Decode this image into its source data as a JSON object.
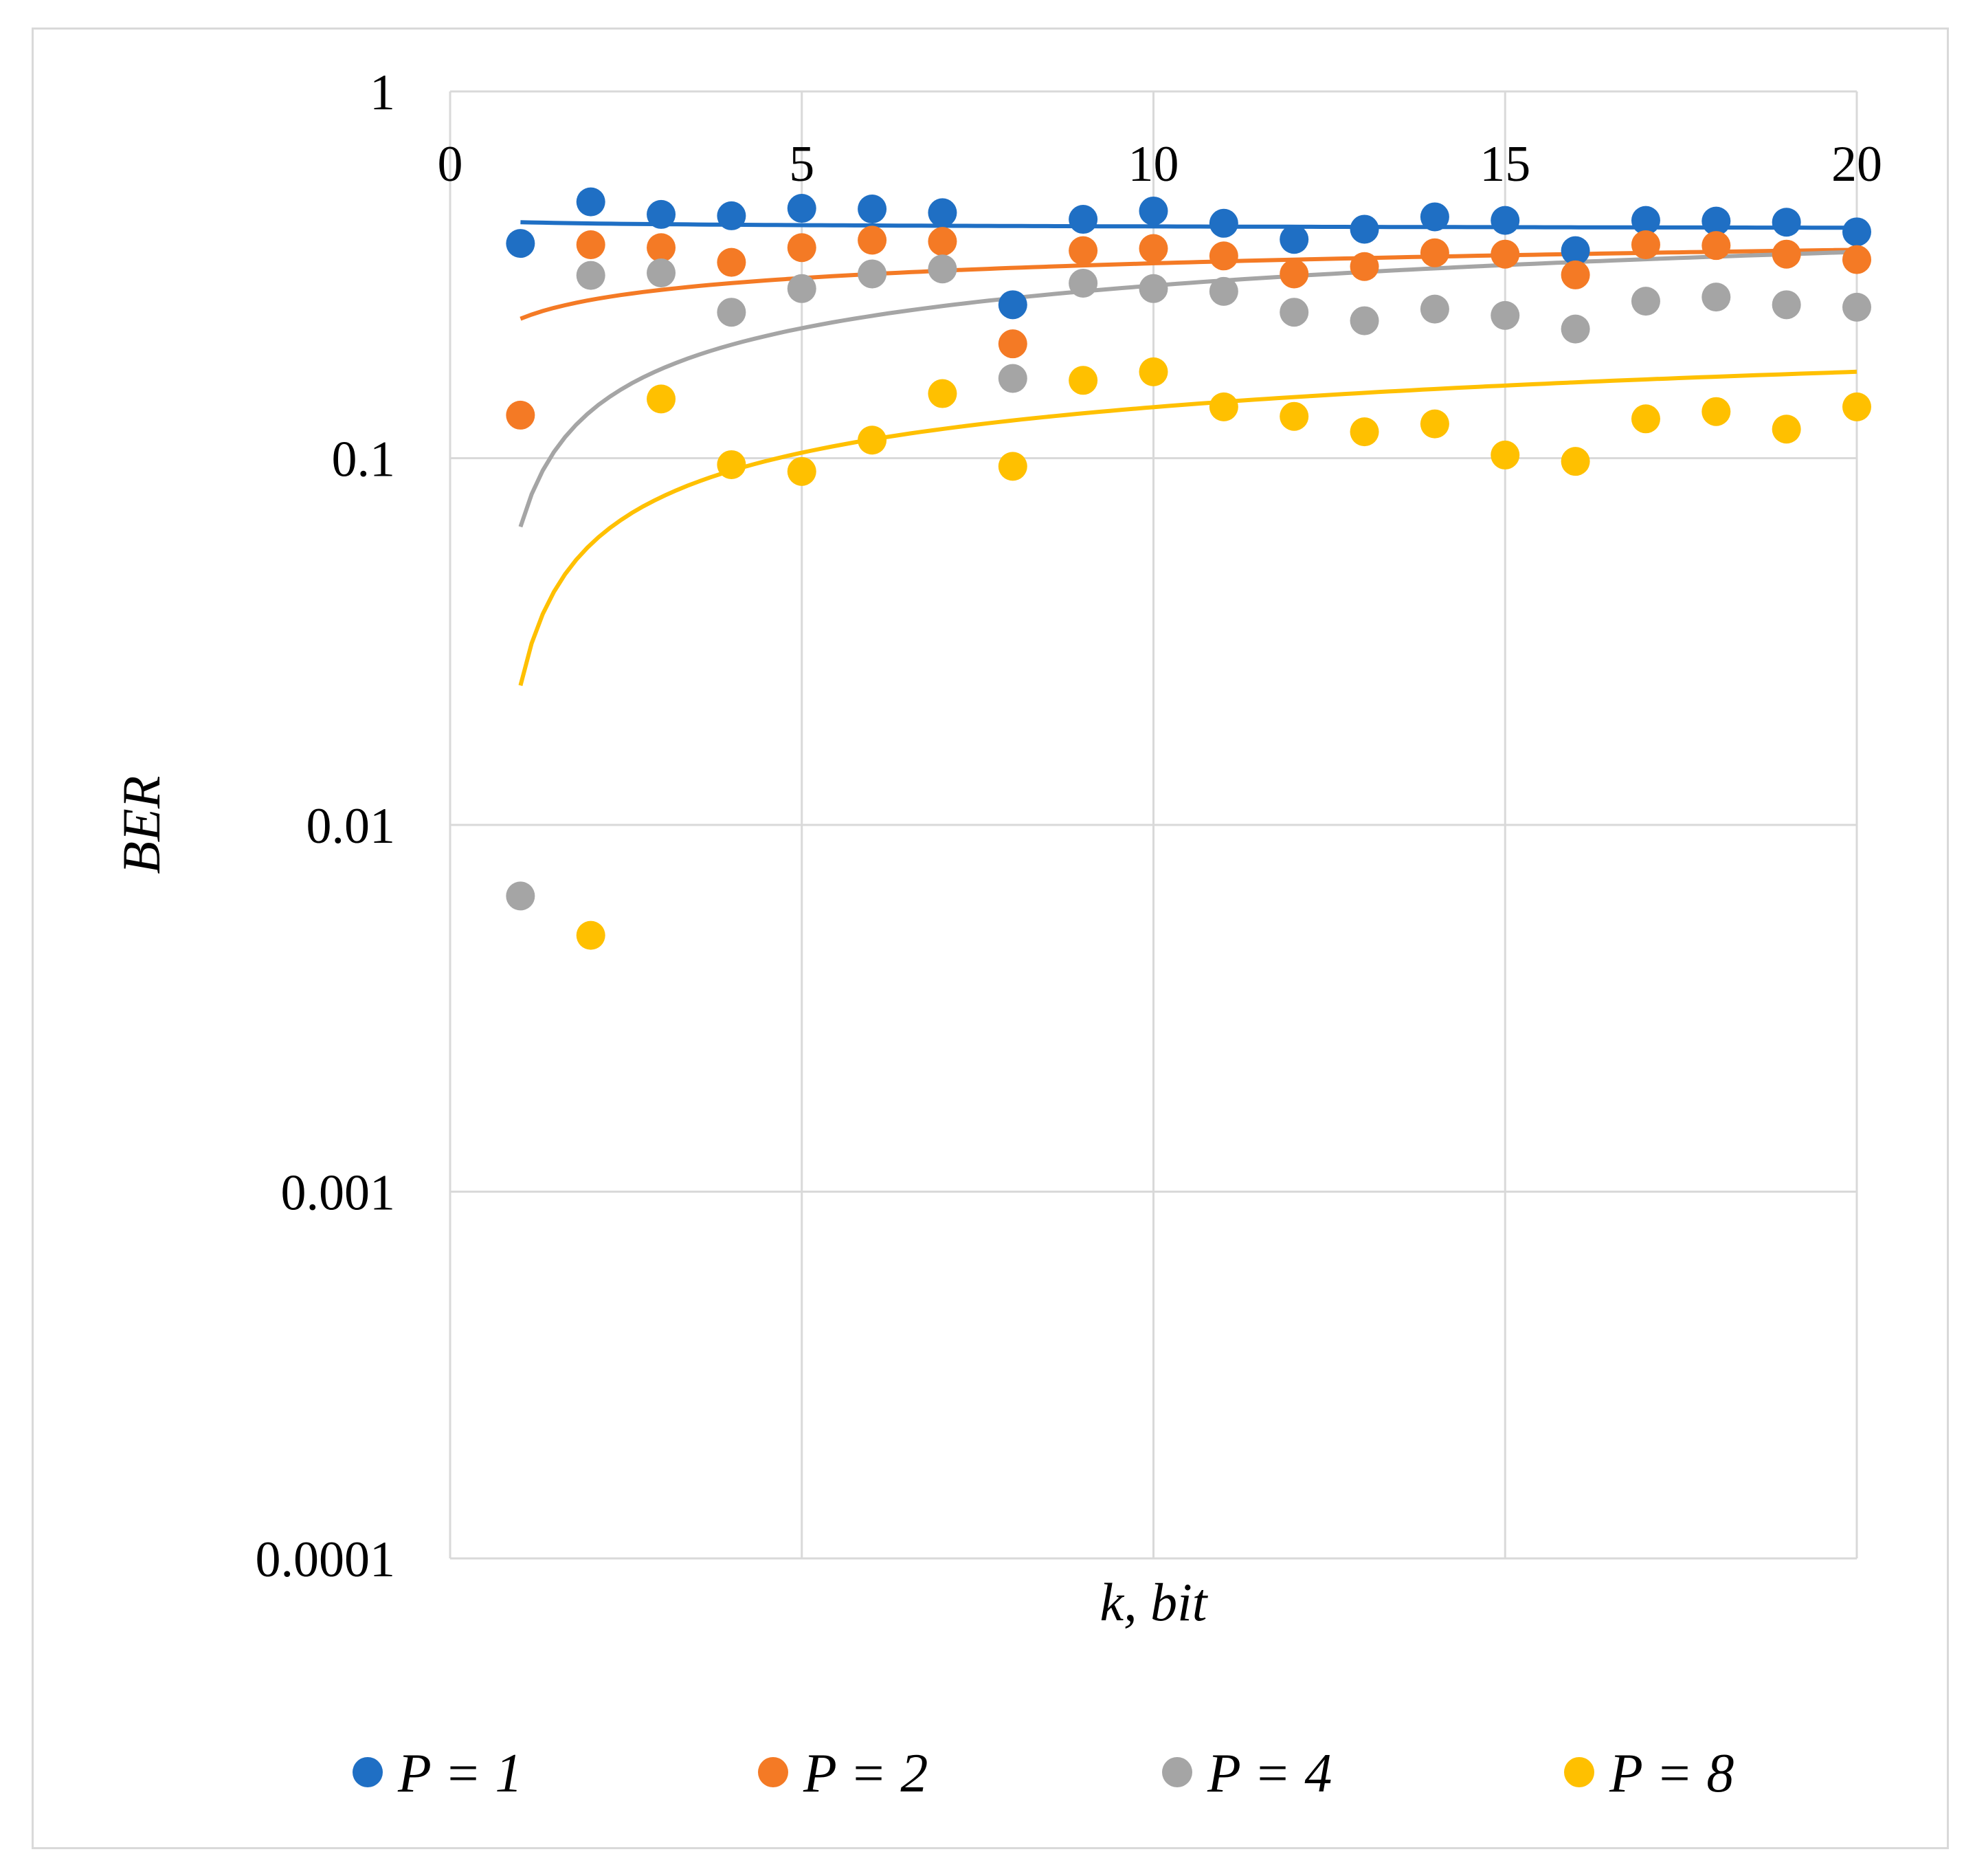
{
  "chart_data": {
    "type": "scatter",
    "title": "",
    "xlabel": "k, bit",
    "ylabel": "BER",
    "xlim": [
      0,
      20
    ],
    "ylim": [
      0.0001,
      1
    ],
    "yscale": "log",
    "xticks": [
      0,
      5,
      10,
      15,
      20
    ],
    "xtick_labels": [
      "0",
      "5",
      "10",
      "15",
      "20"
    ],
    "yticks": [
      1,
      0.1,
      0.01,
      0.001,
      0.0001
    ],
    "ytick_labels": [
      "1",
      "0.1",
      "0.01",
      "0.001",
      "0.0001"
    ],
    "grid": true,
    "legend_position": "bottom",
    "x": [
      1,
      2,
      3,
      4,
      5,
      6,
      7,
      8,
      9,
      10,
      11,
      12,
      13,
      14,
      15,
      16,
      17,
      18,
      19,
      20
    ],
    "series": [
      {
        "name": "P = 1",
        "color": "#1f6fc4",
        "values": [
          0.385,
          0.5,
          0.462,
          0.458,
          0.48,
          0.478,
          0.467,
          0.262,
          0.448,
          0.472,
          0.437,
          0.395,
          0.421,
          0.455,
          0.445,
          0.368,
          0.445,
          0.443,
          0.44,
          0.414
        ],
        "trend": {
          "type": "log",
          "k_start": 1,
          "k_end": 20,
          "y_start": 0.44,
          "y_end": 0.425
        }
      },
      {
        "name": "P = 2",
        "color": "#f47a25",
        "values": [
          0.131,
          0.382,
          0.375,
          0.342,
          0.375,
          0.393,
          0.39,
          0.205,
          0.368,
          0.373,
          0.356,
          0.318,
          0.333,
          0.363,
          0.36,
          0.316,
          0.382,
          0.38,
          0.36,
          0.348
        ],
        "trend": {
          "type": "log",
          "k_start": 1,
          "k_end": 20,
          "y_start": 0.24,
          "y_end": 0.37
        }
      },
      {
        "name": "P = 4",
        "color": "#a5a5a5",
        "values": [
          0.0064,
          0.315,
          0.32,
          0.25,
          0.29,
          0.318,
          0.328,
          0.165,
          0.3,
          0.29,
          0.285,
          0.25,
          0.237,
          0.255,
          0.245,
          0.225,
          0.268,
          0.275,
          0.262,
          0.258
        ],
        "trend": {
          "type": "log",
          "k_start": 1,
          "k_end": 20,
          "y_start": 0.065,
          "y_end": 0.365
        }
      },
      {
        "name": "P = 8",
        "color": "#ffc000",
        "values": null,
        "points": [
          [
            2,
            0.005
          ],
          [
            3,
            0.145
          ],
          [
            4,
            0.096
          ],
          [
            5,
            0.092
          ],
          [
            6,
            0.112
          ],
          [
            7,
            0.15
          ],
          [
            8,
            0.095
          ],
          [
            9,
            0.163
          ],
          [
            10,
            0.172
          ],
          [
            11,
            0.138
          ],
          [
            12,
            0.13
          ],
          [
            13,
            0.118
          ],
          [
            14,
            0.124
          ],
          [
            15,
            0.102
          ],
          [
            16,
            0.098
          ],
          [
            17,
            0.128
          ],
          [
            18,
            0.134
          ],
          [
            19,
            0.12
          ],
          [
            20,
            0.138
          ]
        ],
        "trend": {
          "type": "log",
          "k_start": 1,
          "k_end": 20,
          "y_start": 0.024,
          "y_end": 0.172
        }
      }
    ]
  }
}
